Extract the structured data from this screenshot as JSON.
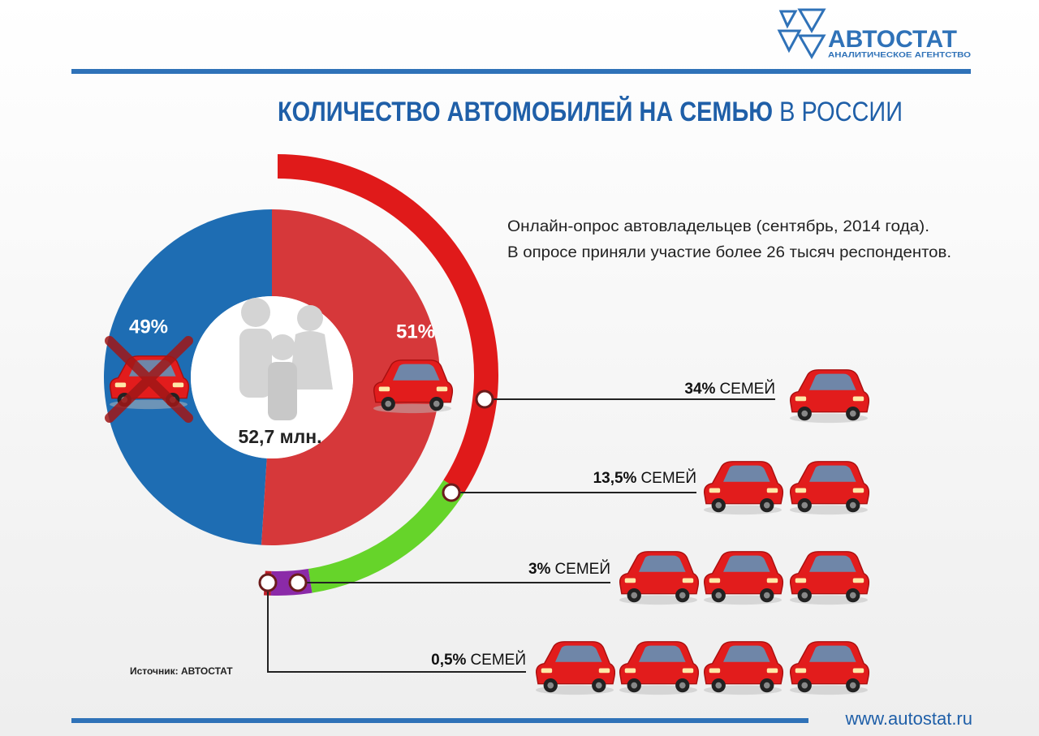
{
  "header": {
    "brand": "АВТОСТАТ",
    "brand_subtitle": "АНАЛИТИЧЕСКОЕ АГЕНТСТВО"
  },
  "title": {
    "bold": "КОЛИЧЕСТВО АВТОМОБИЛЕЙ НА СЕМЬЮ",
    "regular": "В РОССИИ"
  },
  "note": [
    "Онлайн-опрос автовладельцев (сентябрь, 2014 года).",
    "В опросе приняли участие более 26 тысяч респондентов."
  ],
  "chart_data": [
    {
      "type": "donut",
      "values": [
        49,
        51
      ],
      "value_labels": [
        "49%",
        "51%"
      ],
      "colors": [
        "#1e6db3",
        "#d6383a"
      ],
      "center_label": "52,7 млн."
    },
    {
      "type": "arc",
      "values": [
        34,
        13.5,
        3,
        0.5
      ],
      "value_labels": [
        "34%",
        "13,5%",
        "3%",
        "0,5%"
      ],
      "unit_label": "СЕМЕЙ",
      "colors": [
        "#e01a1a",
        "#66d42a",
        "#8b2aa8",
        "#c0202a"
      ]
    }
  ],
  "source": "Источник: АВТОСТАТ",
  "footer": "www.autostat.ru"
}
